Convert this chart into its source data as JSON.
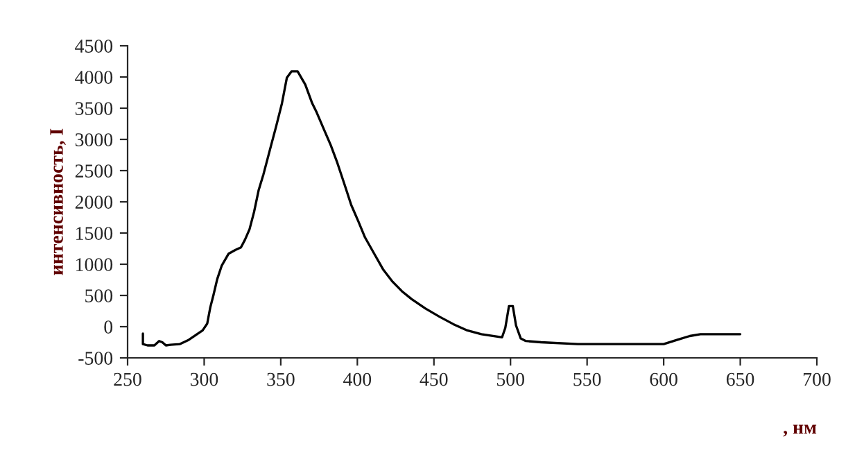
{
  "chart_data": {
    "type": "line",
    "xlabel": ", нм",
    "ylabel": "интенсивность, I",
    "x": [
      260,
      260,
      263,
      267.5,
      270.6,
      272.7,
      275,
      278,
      284,
      290,
      296,
      299,
      302,
      304,
      306,
      308.5,
      311.5,
      316,
      320.5,
      324,
      326.6,
      329.6,
      332.6,
      335.6,
      338.7,
      343,
      347,
      350.8,
      354,
      357,
      361,
      366,
      370.5,
      373.5,
      378,
      382.6,
      387,
      391.6,
      396,
      400.6,
      405,
      411,
      417,
      423,
      429,
      435.5,
      444.5,
      453.6,
      462.7,
      471.8,
      481,
      494.5,
      496.6,
      499,
      501.5,
      503.6,
      506.7,
      510,
      520,
      544,
      600,
      609,
      617,
      624,
      650
    ],
    "series": [
      {
        "color": "#000000",
        "values": [
          -110,
          -280,
          -300,
          -300,
          -230,
          -250,
          -300,
          -290,
          -280,
          -210,
          -110,
          -60,
          50,
          310,
          500,
          760,
          980,
          1170,
          1230,
          1270,
          1390,
          1560,
          1840,
          2190,
          2440,
          2840,
          3210,
          3580,
          3990,
          4090,
          4090,
          3880,
          3580,
          3430,
          3170,
          2910,
          2620,
          2280,
          1950,
          1690,
          1430,
          1170,
          910,
          720,
          570,
          440,
          290,
          160,
          40,
          -60,
          -120,
          -170,
          -20,
          330,
          330,
          20,
          -190,
          -230,
          -250,
          -280,
          -280,
          -210,
          -150,
          -120,
          -120
        ]
      }
    ],
    "xlim": [
      250,
      700
    ],
    "xticks": [
      250,
      300,
      350,
      400,
      450,
      500,
      550,
      600,
      650,
      700
    ],
    "ylim": [
      -500,
      4500
    ],
    "yticks": [
      -500,
      0,
      500,
      1000,
      1500,
      2000,
      2500,
      3000,
      3500,
      4000,
      4500
    ],
    "grid": false,
    "marker": "none",
    "line_style": "solid"
  }
}
